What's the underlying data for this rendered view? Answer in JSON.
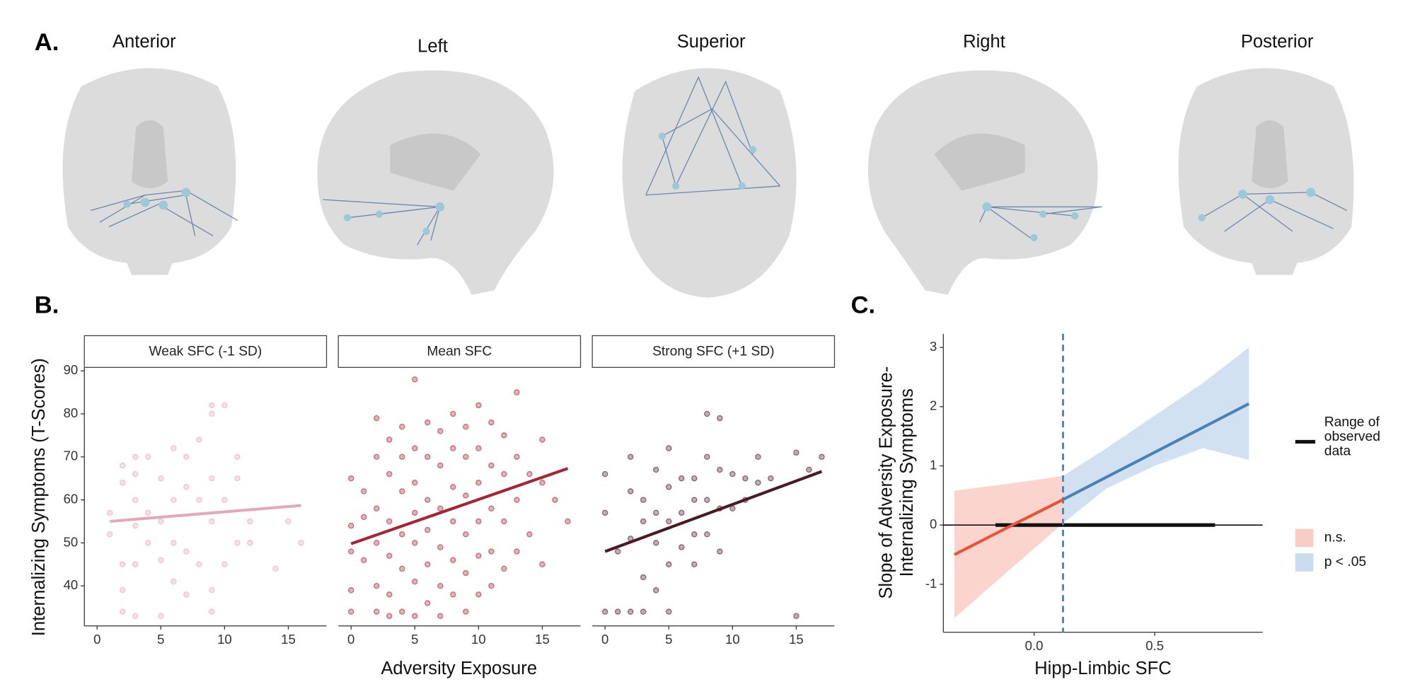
{
  "panel_a": {
    "label": "A.",
    "views": [
      "Anterior",
      "Left",
      "Superior",
      "Right",
      "Posterior"
    ]
  },
  "chart_data": [
    {
      "type": "scatter",
      "panel": "B.",
      "xlabel": "Adversity Exposure",
      "ylabel": "Internalizing Symptoms (T-Scores)",
      "xlim": [
        -1,
        18
      ],
      "xticks": [
        0,
        5,
        10,
        15
      ],
      "ylim": [
        30.7,
        90.8
      ],
      "yticks": [
        40,
        50,
        60,
        70,
        80,
        90
      ],
      "grid": false,
      "series": [
        {
          "name": "Weak SFC (-1 SD)",
          "color": "#e3a9b8",
          "x": [
            1,
            1,
            2,
            2,
            2,
            2,
            2,
            3,
            3,
            3,
            3,
            3,
            3,
            4,
            4,
            4,
            5,
            5,
            5,
            5,
            6,
            6,
            6,
            6,
            7,
            7,
            7,
            7,
            8,
            8,
            8,
            9,
            9,
            9,
            9,
            9,
            9,
            10,
            10,
            10,
            11,
            11,
            11,
            12,
            12,
            14,
            16,
            15
          ],
          "values": [
            52,
            57,
            68,
            64,
            45,
            39,
            34,
            70,
            66,
            60,
            54,
            45,
            33,
            70,
            57,
            50,
            65,
            55,
            46,
            33,
            72,
            60,
            50,
            41,
            70,
            63,
            48,
            38,
            74,
            60,
            45,
            82,
            80,
            65,
            55,
            39,
            34,
            82,
            60,
            45,
            70,
            65,
            50,
            55,
            50,
            44,
            50,
            55
          ],
          "fit_x": [
            1,
            16
          ],
          "fit_values": [
            55,
            58.7
          ]
        },
        {
          "name": "Mean SFC",
          "color": "#a52436",
          "x": [
            0,
            0,
            0,
            0,
            0,
            1,
            1,
            1,
            2,
            2,
            2,
            2,
            2,
            2,
            3,
            3,
            3,
            3,
            3,
            3,
            4,
            4,
            4,
            4,
            4,
            4,
            5,
            5,
            5,
            5,
            5,
            5,
            5,
            6,
            6,
            6,
            6,
            6,
            6,
            7,
            7,
            7,
            7,
            7,
            7,
            8,
            8,
            8,
            8,
            8,
            8,
            9,
            9,
            9,
            9,
            9,
            9,
            10,
            10,
            10,
            10,
            10,
            10,
            11,
            11,
            11,
            11,
            11,
            12,
            12,
            12,
            12,
            13,
            13,
            13,
            13,
            14,
            14,
            15,
            15,
            15,
            16,
            17
          ],
          "values": [
            65,
            54,
            48,
            39,
            34,
            62,
            56,
            46,
            79,
            70,
            58,
            50,
            40,
            34,
            74,
            66,
            55,
            47,
            38,
            33,
            77,
            70,
            62,
            52,
            44,
            34,
            88,
            72,
            64,
            57,
            50,
            41,
            33,
            78,
            70,
            60,
            53,
            45,
            36,
            76,
            68,
            58,
            49,
            40,
            33,
            80,
            72,
            63,
            55,
            46,
            38,
            77,
            70,
            61,
            52,
            43,
            34,
            82,
            72,
            64,
            55,
            47,
            38,
            78,
            68,
            58,
            48,
            40,
            75,
            66,
            55,
            44,
            85,
            70,
            60,
            48,
            66,
            52,
            74,
            64,
            45,
            60,
            55
          ],
          "fit_x": [
            0,
            17
          ],
          "fit_values": [
            49.8,
            67.3
          ]
        },
        {
          "name": "Strong SFC (+1 SD)",
          "color": "#4a1a24",
          "x": [
            0,
            0,
            0,
            1,
            1,
            2,
            2,
            2,
            2,
            3,
            3,
            3,
            3,
            4,
            4,
            4,
            4,
            5,
            5,
            5,
            5,
            5,
            6,
            6,
            6,
            7,
            7,
            7,
            7,
            8,
            8,
            8,
            8,
            9,
            9,
            9,
            9,
            10,
            10,
            11,
            11,
            12,
            12,
            13,
            15,
            15,
            16,
            17
          ],
          "values": [
            66,
            57,
            34,
            48,
            34,
            70,
            62,
            51,
            34,
            60,
            55,
            42,
            34,
            67,
            50,
            39,
            57,
            72,
            63,
            55,
            45,
            34,
            65,
            57,
            49,
            65,
            60,
            52,
            45,
            80,
            70,
            60,
            52,
            79,
            67,
            58,
            48,
            66,
            58,
            65,
            60,
            70,
            64,
            65,
            71,
            33,
            67,
            70
          ],
          "fit_x": [
            0,
            17
          ],
          "fit_values": [
            48,
            66.6
          ]
        }
      ]
    },
    {
      "type": "line",
      "panel": "C.",
      "xlabel": "Hipp-Limbic SFC",
      "ylabel": [
        "Slope of Adversity Exposure-",
        "Internalizing Symptoms"
      ],
      "xlim": [
        -0.376,
        0.947
      ],
      "xticks": [
        {
          "value": 0,
          "label": "0.0"
        },
        {
          "value": 0.5,
          "label": "0.5"
        }
      ],
      "ylim": [
        -1.81,
        3.23
      ],
      "yticks": [
        -1,
        0,
        1,
        2,
        3
      ],
      "grid": false,
      "vline": 0.12,
      "range_of_observed": [
        -0.16,
        0.75
      ],
      "range_label": "Range of observed data",
      "series": [
        {
          "name": "n.s.",
          "color": "#e8533a",
          "band_color": "#f9cdc4",
          "x": [
            -0.33,
            -0.1,
            0.12
          ],
          "values": [
            -0.5,
            -0.02,
            0.43
          ],
          "lower": [
            -1.57,
            -0.75,
            0.03
          ],
          "upper": [
            0.58,
            0.7,
            0.83
          ]
        },
        {
          "name": "p < .05",
          "color": "#4a82b4",
          "band_color": "#cadcee",
          "x": [
            0.12,
            0.3,
            0.5,
            0.7,
            0.89
          ],
          "values": [
            0.43,
            0.81,
            1.23,
            1.65,
            2.05
          ],
          "lower": [
            0.03,
            0.62,
            1.0,
            1.3,
            1.1
          ],
          "upper": [
            0.83,
            1.3,
            1.85,
            2.4,
            3.0
          ]
        }
      ]
    }
  ]
}
